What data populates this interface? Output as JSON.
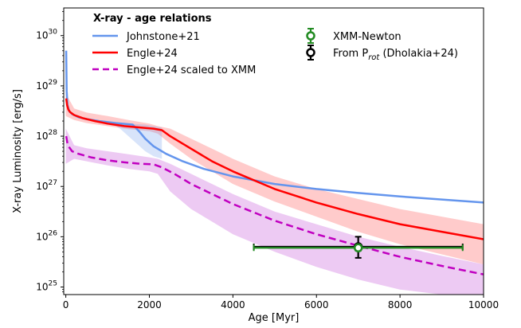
{
  "chart_data": {
    "type": "line",
    "xlabel": "Age [Myr]",
    "ylabel": "X-ray Luminosity [erg/s]",
    "xlim": [
      -50,
      10000
    ],
    "ylim_log10": [
      24.85,
      30.55
    ],
    "yscale": "log",
    "grid": false,
    "legend": {
      "title": "X-ray - age relations",
      "placement": "top",
      "entries": [
        {
          "label": "Johnstone+21",
          "color": "#6495ED",
          "style": "solid"
        },
        {
          "label": "Engle+24",
          "color": "#FF0000",
          "style": "solid"
        },
        {
          "label": "Engle+24 scaled to XMM",
          "color": "#C000C0",
          "style": "dashed"
        },
        {
          "label": "XMM-Newton",
          "color": "#228B22",
          "style": "marker"
        },
        {
          "label_prefix": "From P",
          "label_sub": "rot",
          "label_suffix": " (Dholakia+24)",
          "color": "#000000",
          "style": "marker"
        }
      ]
    },
    "x_ticks": [
      0,
      2000,
      4000,
      6000,
      8000,
      10000
    ],
    "x_tick_labels": [
      "0",
      "2000",
      "4000",
      "6000",
      "8000",
      "10000"
    ],
    "y_ticks_log10": [
      25,
      26,
      27,
      28,
      29,
      30
    ],
    "y_tick_labels": [
      {
        "base": "10",
        "exp": "25"
      },
      {
        "base": "10",
        "exp": "26"
      },
      {
        "base": "10",
        "exp": "27"
      },
      {
        "base": "10",
        "exp": "28"
      },
      {
        "base": "10",
        "exp": "29"
      },
      {
        "base": "10",
        "exp": "30"
      }
    ],
    "series": [
      {
        "name": "Johnstone+21",
        "color": "#6495ED",
        "style": "solid",
        "x": [
          10,
          20,
          40,
          80,
          150,
          300,
          500,
          800,
          1200,
          1600,
          1750,
          1900,
          2100,
          2400,
          2800,
          3300,
          4000,
          5000,
          6000,
          7000,
          8000,
          9000,
          10000
        ],
        "log10_y": [
          29.7,
          28.9,
          28.62,
          28.5,
          28.44,
          28.38,
          28.34,
          28.3,
          28.26,
          28.23,
          28.1,
          27.95,
          27.8,
          27.65,
          27.5,
          27.35,
          27.2,
          27.05,
          26.95,
          26.87,
          26.8,
          26.74,
          26.68
        ],
        "band_x": [
          1100,
          1300,
          1500,
          1700,
          1900,
          2100,
          2300
        ],
        "band_log10_low": [
          28.25,
          28.15,
          28.0,
          27.85,
          27.7,
          27.6,
          27.55
        ],
        "band_log10_high": [
          28.27,
          28.26,
          28.25,
          28.24,
          28.23,
          28.2,
          28.17
        ]
      },
      {
        "name": "Engle+24",
        "color": "#FF0000",
        "style": "solid",
        "x": [
          10,
          30,
          60,
          100,
          200,
          400,
          700,
          1000,
          1400,
          1800,
          2100,
          2300,
          2500,
          3000,
          3500,
          4000,
          5000,
          6000,
          7000,
          8000,
          9000,
          10000
        ],
        "log10_y": [
          28.75,
          28.62,
          28.53,
          28.48,
          28.42,
          28.36,
          28.3,
          28.25,
          28.2,
          28.17,
          28.15,
          28.12,
          28.0,
          27.75,
          27.5,
          27.3,
          26.95,
          26.68,
          26.45,
          26.25,
          26.1,
          25.95
        ],
        "band_x": [
          0,
          200,
          500,
          1000,
          1500,
          2000,
          2200,
          2500,
          3000,
          3500,
          4000,
          5000,
          6000,
          7000,
          8000,
          9000,
          10000
        ],
        "band_log10_low": [
          28.4,
          28.32,
          28.26,
          28.2,
          28.14,
          28.1,
          28.05,
          27.85,
          27.55,
          27.3,
          27.05,
          26.7,
          26.4,
          26.1,
          25.85,
          25.65,
          25.45
        ],
        "band_log10_high": [
          28.85,
          28.55,
          28.47,
          28.4,
          28.32,
          28.25,
          28.2,
          28.15,
          27.95,
          27.75,
          27.55,
          27.2,
          26.95,
          26.75,
          26.55,
          26.4,
          26.25
        ]
      },
      {
        "name": "Engle+24 scaled to XMM",
        "color": "#C000C0",
        "style": "dashed",
        "x": [
          10,
          40,
          80,
          150,
          300,
          600,
          1000,
          1400,
          1800,
          2100,
          2300,
          2600,
          3000,
          3500,
          4000,
          5000,
          6000,
          7000,
          8000,
          9000,
          10000
        ],
        "log10_y": [
          28.0,
          27.85,
          27.78,
          27.7,
          27.65,
          27.58,
          27.52,
          27.48,
          27.45,
          27.44,
          27.38,
          27.25,
          27.05,
          26.85,
          26.65,
          26.32,
          26.05,
          25.82,
          25.6,
          25.42,
          25.25
        ],
        "band_x": [
          0,
          200,
          500,
          1000,
          1500,
          2000,
          2200,
          2500,
          3000,
          3500,
          4000,
          5000,
          6000,
          7000,
          8000,
          9000,
          10000
        ],
        "band_log10_low": [
          27.45,
          27.55,
          27.5,
          27.42,
          27.35,
          27.3,
          27.25,
          26.9,
          26.55,
          26.3,
          26.05,
          25.7,
          25.4,
          25.15,
          24.95,
          24.85,
          24.85
        ],
        "band_log10_high": [
          28.15,
          27.82,
          27.76,
          27.7,
          27.64,
          27.58,
          27.55,
          27.45,
          27.25,
          27.05,
          26.85,
          26.5,
          26.25,
          26.0,
          25.8,
          25.62,
          25.45
        ]
      }
    ],
    "points": [
      {
        "name": "XMM-Newton",
        "x": 7000,
        "log10_y": 25.78,
        "xerr_low": 2500,
        "xerr_high": 2500,
        "log10_yerr_low": 0.06,
        "log10_yerr_high": 0.06,
        "color": "#228B22"
      },
      {
        "name": "From P_rot (Dholakia+24)",
        "x": 7000,
        "log10_y": 25.8,
        "xerr_low": 2500,
        "xerr_high": 2500,
        "log10_yerr_low": 0.22,
        "log10_yerr_high": 0.2,
        "color": "#000000"
      }
    ]
  }
}
